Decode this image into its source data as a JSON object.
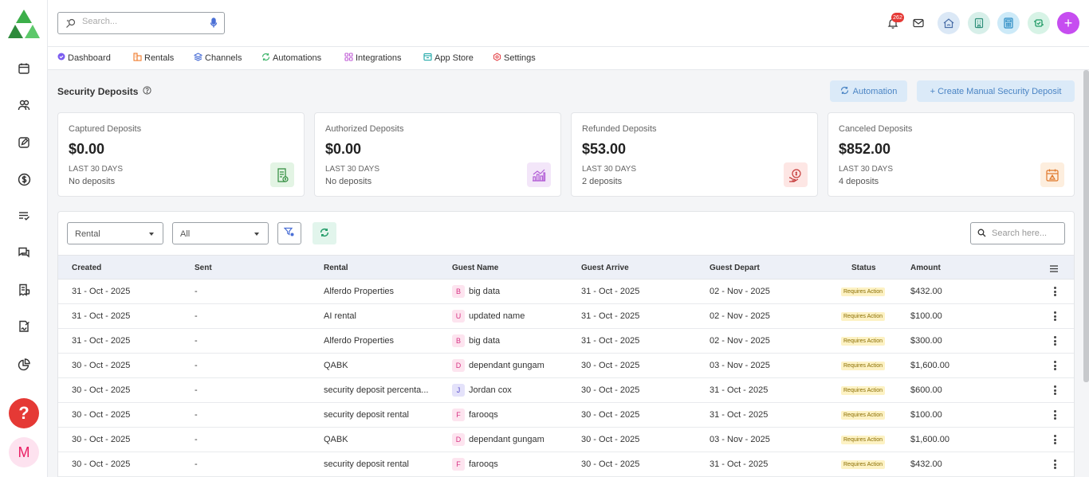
{
  "topbar": {
    "search_placeholder": "Search...",
    "notification_count": "262",
    "icons": [
      "bell-icon",
      "mail-icon",
      "home-wifi-icon",
      "building-icon",
      "calculator-icon",
      "sync-icon",
      "plus-icon"
    ]
  },
  "menu": {
    "items": [
      {
        "label": "Dashboard",
        "icon": "dashboard-icon",
        "color": "#7b5cf0"
      },
      {
        "label": "Rentals",
        "icon": "rentals-icon",
        "color": "#f07a2a"
      },
      {
        "label": "Channels",
        "icon": "channels-icon",
        "color": "#4a6fd6"
      },
      {
        "label": "Automations",
        "icon": "automations-icon",
        "color": "#3fb56b"
      },
      {
        "label": "Integrations",
        "icon": "integrations-icon",
        "color": "#c05cd6"
      },
      {
        "label": "App Store",
        "icon": "app-store-icon",
        "color": "#19a5a5"
      },
      {
        "label": "Settings",
        "icon": "settings-icon",
        "color": "#e5484d"
      }
    ]
  },
  "page": {
    "title": "Security Deposits",
    "automation_label": "Automation",
    "create_label": "+ Create Manual Security Deposit"
  },
  "cards": [
    {
      "title": "Captured Deposits",
      "value": "$0.00",
      "period": "LAST 30 DAYS",
      "count": "No deposits",
      "icon": "receipt-icon",
      "color": "#e3f4e4"
    },
    {
      "title": "Authorized Deposits",
      "value": "$0.00",
      "period": "LAST 30 DAYS",
      "count": "No deposits",
      "icon": "growth-chart-icon",
      "color": "#f3e6f9"
    },
    {
      "title": "Refunded Deposits",
      "value": "$53.00",
      "period": "LAST 30 DAYS",
      "count": "2 deposits",
      "icon": "refund-icon",
      "color": "#fde6e4"
    },
    {
      "title": "Canceled Deposits",
      "value": "$852.00",
      "period": "LAST 30 DAYS",
      "count": "4 deposits",
      "icon": "cancel-calendar-icon",
      "color": "#fdeede"
    }
  ],
  "filters": {
    "rental": "Rental",
    "status": "All",
    "search_placeholder": "Search here..."
  },
  "table": {
    "headers": [
      "Created",
      "Sent",
      "Rental",
      "Guest Name",
      "Guest Arrive",
      "Guest Depart",
      "Status",
      "Amount"
    ],
    "rows": [
      {
        "created": "31 - Oct - 2025",
        "sent": "-",
        "rental": "Alferdo Properties",
        "initial": "B",
        "guest": "big data",
        "arrive": "31 - Oct - 2025",
        "depart": "02 - Nov - 2025",
        "status": "Requires Action",
        "amount": "$432.00",
        "tone": "pink"
      },
      {
        "created": "31 - Oct - 2025",
        "sent": "-",
        "rental": "AI rental",
        "initial": "U",
        "guest": "updated name",
        "arrive": "31 - Oct - 2025",
        "depart": "02 - Nov - 2025",
        "status": "Requires Action",
        "amount": "$100.00",
        "tone": "pink"
      },
      {
        "created": "31 - Oct - 2025",
        "sent": "-",
        "rental": "Alferdo Properties",
        "initial": "B",
        "guest": "big data",
        "arrive": "31 - Oct - 2025",
        "depart": "02 - Nov - 2025",
        "status": "Requires Action",
        "amount": "$300.00",
        "tone": "pink"
      },
      {
        "created": "30 - Oct - 2025",
        "sent": "-",
        "rental": "QABK",
        "initial": "D",
        "guest": "dependant gungam",
        "arrive": "30 - Oct - 2025",
        "depart": "03 - Nov - 2025",
        "status": "Requires Action",
        "amount": "$1,600.00",
        "tone": "pink"
      },
      {
        "created": "30 - Oct - 2025",
        "sent": "-",
        "rental": "security deposit percenta...",
        "initial": "J",
        "guest": "Jordan cox",
        "arrive": "30 - Oct - 2025",
        "depart": "31 - Oct - 2025",
        "status": "Requires Action",
        "amount": "$600.00",
        "tone": "purple"
      },
      {
        "created": "30 - Oct - 2025",
        "sent": "-",
        "rental": "security deposit rental",
        "initial": "F",
        "guest": "farooqs",
        "arrive": "30 - Oct - 2025",
        "depart": "31 - Oct - 2025",
        "status": "Requires Action",
        "amount": "$100.00",
        "tone": "pink"
      },
      {
        "created": "30 - Oct - 2025",
        "sent": "-",
        "rental": "QABK",
        "initial": "D",
        "guest": "dependant gungam",
        "arrive": "30 - Oct - 2025",
        "depart": "03 - Nov - 2025",
        "status": "Requires Action",
        "amount": "$1,600.00",
        "tone": "pink"
      },
      {
        "created": "30 - Oct - 2025",
        "sent": "-",
        "rental": "security deposit rental",
        "initial": "F",
        "guest": "farooqs",
        "arrive": "30 - Oct - 2025",
        "depart": "31 - Oct - 2025",
        "status": "Requires Action",
        "amount": "$432.00",
        "tone": "pink"
      }
    ]
  },
  "sidebar": {
    "icons": [
      "calendar-icon",
      "users-icon",
      "edit-icon",
      "dollar-icon",
      "tasks-icon",
      "chat-icon",
      "receipt-list-icon",
      "signature-icon",
      "pie-chart-icon"
    ],
    "help_label": "?",
    "avatar_initial": "M"
  }
}
